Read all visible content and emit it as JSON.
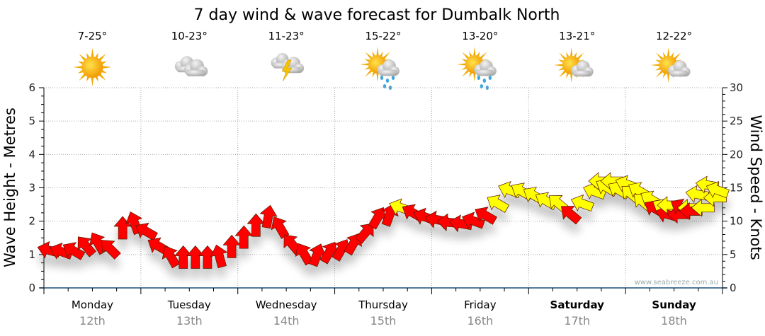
{
  "chart_data": {
    "type": "scatter",
    "title": "7 day wind & wave forecast for Dumbalk North",
    "ylabel_left": "Wave Height - Metres",
    "ylabel_right": "Wind Speed - Knots",
    "ylim_left": [
      0,
      6
    ],
    "ylim_right": [
      0,
      30
    ],
    "yticks_left": [
      "0",
      "1",
      "2",
      "3",
      "4",
      "5",
      "6"
    ],
    "yticks_right": [
      "0",
      "5",
      "10",
      "15",
      "20",
      "25",
      "30"
    ],
    "grid": true,
    "watermark": "www.seabreeze.com.au",
    "days": [
      {
        "name": "Monday",
        "date": "12th",
        "temp": "7-25°",
        "icon": "sunny",
        "bold": false
      },
      {
        "name": "Tuesday",
        "date": "13th",
        "temp": "10-23°",
        "icon": "cloudy",
        "bold": false
      },
      {
        "name": "Wednesday",
        "date": "14th",
        "temp": "11-23°",
        "icon": "storm",
        "bold": false
      },
      {
        "name": "Thursday",
        "date": "15th",
        "temp": "15-22°",
        "icon": "sun-showers",
        "bold": false
      },
      {
        "name": "Friday",
        "date": "16th",
        "temp": "13-20°",
        "icon": "sun-showers",
        "bold": false
      },
      {
        "name": "Saturday",
        "date": "17th",
        "temp": "13-21°",
        "icon": "partly-cloudy",
        "bold": true
      },
      {
        "name": "Sunday",
        "date": "18th",
        "temp": "12-22°",
        "icon": "partly-cloudy",
        "bold": true
      }
    ],
    "wind_series_note": "hours from Monday 00:00, knots, arrow heading degrees, color",
    "colors": {
      "r": "#ff0000",
      "y": "#ffff00"
    },
    "wind": [
      [
        1.5,
        5.6,
        285,
        "r"
      ],
      [
        4.5,
        5.4,
        290,
        "r"
      ],
      [
        7.5,
        5.5,
        300,
        "r"
      ],
      [
        10.5,
        6.2,
        320,
        "r"
      ],
      [
        13.5,
        6.6,
        330,
        "r"
      ],
      [
        16.5,
        5.8,
        315,
        "r"
      ],
      [
        19.5,
        8.8,
        0,
        "r"
      ],
      [
        22.5,
        9.6,
        340,
        "r"
      ],
      [
        25.5,
        8.4,
        300,
        "r"
      ],
      [
        28.5,
        6.2,
        300,
        "r"
      ],
      [
        31.5,
        4.6,
        330,
        "r"
      ],
      [
        34.5,
        4.4,
        0,
        "r"
      ],
      [
        37.5,
        4.4,
        0,
        "r"
      ],
      [
        40.5,
        4.4,
        0,
        "r"
      ],
      [
        43.5,
        4.6,
        345,
        "r"
      ],
      [
        46.5,
        6.0,
        0,
        "r"
      ],
      [
        49.5,
        7.4,
        0,
        "r"
      ],
      [
        52.5,
        9.2,
        0,
        "r"
      ],
      [
        55.5,
        10.5,
        10,
        "r"
      ],
      [
        58.5,
        9.0,
        330,
        "r"
      ],
      [
        61.5,
        6.5,
        320,
        "r"
      ],
      [
        64.5,
        5.0,
        330,
        "r"
      ],
      [
        67.5,
        4.8,
        20,
        "r"
      ],
      [
        70.5,
        5.2,
        30,
        "r"
      ],
      [
        73.5,
        5.6,
        30,
        "r"
      ],
      [
        76.5,
        6.5,
        30,
        "r"
      ],
      [
        79.5,
        8.2,
        40,
        "r"
      ],
      [
        82.5,
        10.4,
        30,
        "r"
      ],
      [
        85.5,
        10.8,
        20,
        "r"
      ],
      [
        88.5,
        12.0,
        290,
        "y"
      ],
      [
        91.5,
        11.2,
        300,
        "r"
      ],
      [
        94.5,
        10.6,
        290,
        "r"
      ],
      [
        97.5,
        10.2,
        280,
        "r"
      ],
      [
        100.5,
        9.8,
        275,
        "r"
      ],
      [
        103.5,
        9.6,
        280,
        "r"
      ],
      [
        106.5,
        10.0,
        290,
        "r"
      ],
      [
        109.5,
        10.8,
        300,
        "r"
      ],
      [
        112.5,
        12.6,
        300,
        "y"
      ],
      [
        115.5,
        14.6,
        290,
        "y"
      ],
      [
        118.5,
        14.4,
        300,
        "y"
      ],
      [
        121.5,
        13.8,
        300,
        "y"
      ],
      [
        124.5,
        13.0,
        300,
        "y"
      ],
      [
        127.5,
        12.6,
        310,
        "y"
      ],
      [
        130.5,
        11.0,
        310,
        "r"
      ],
      [
        133.5,
        12.6,
        290,
        "y"
      ],
      [
        136.5,
        14.4,
        290,
        "y"
      ],
      [
        139.5,
        15.0,
        300,
        "y"
      ],
      [
        142.5,
        14.6,
        300,
        "y"
      ],
      [
        145.5,
        14.0,
        310,
        "y"
      ],
      [
        148.5,
        12.8,
        310,
        "y"
      ],
      [
        151.5,
        11.8,
        300,
        "r"
      ],
      [
        154.5,
        11.0,
        285,
        "r"
      ],
      [
        157.5,
        11.0,
        270,
        "r"
      ],
      [
        160.5,
        11.5,
        270,
        "r"
      ],
      [
        163.5,
        12.0,
        270,
        "y"
      ],
      [
        166.5,
        13.5,
        270,
        "y"
      ]
    ],
    "wind_extra": [
      [
        138.0,
        16.0,
        270,
        "y"
      ],
      [
        141.0,
        16.0,
        270,
        "y"
      ],
      [
        144.5,
        15.5,
        290,
        "y"
      ],
      [
        147.5,
        14.5,
        300,
        "y"
      ],
      [
        150.5,
        13.2,
        300,
        "y"
      ],
      [
        153.5,
        12.0,
        300,
        "y"
      ],
      [
        155.0,
        12.4,
        270,
        "y"
      ],
      [
        158.0,
        12.0,
        300,
        "r"
      ],
      [
        160.0,
        12.0,
        270,
        "y"
      ],
      [
        162.0,
        14.0,
        280,
        "y"
      ],
      [
        164.5,
        15.4,
        280,
        "y"
      ],
      [
        167.0,
        14.6,
        290,
        "y"
      ]
    ]
  }
}
